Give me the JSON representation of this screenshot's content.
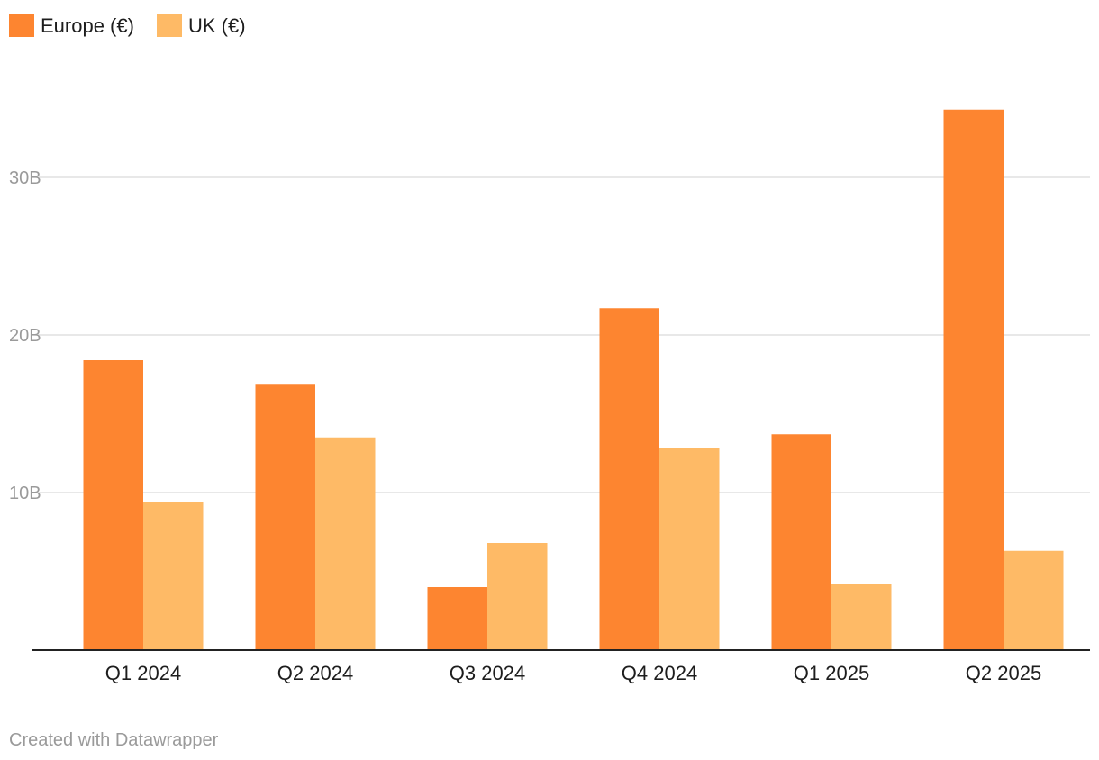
{
  "chart_data": {
    "type": "bar",
    "title": "",
    "xlabel": "",
    "ylabel": "",
    "categories": [
      "Q1 2024",
      "Q2 2024",
      "Q3 2024",
      "Q4 2024",
      "Q1 2025",
      "Q2 2025"
    ],
    "series": [
      {
        "name": "Europe (€)",
        "color": "#fd8530",
        "values": [
          18.4,
          16.9,
          4.0,
          21.7,
          13.7,
          34.3
        ]
      },
      {
        "name": "UK (€)",
        "color": "#feba66",
        "values": [
          9.4,
          13.5,
          6.8,
          12.8,
          4.2,
          6.3
        ]
      }
    ],
    "ylim": [
      0,
      37
    ],
    "yticks": [
      {
        "value": 10,
        "label": "10B"
      },
      {
        "value": 20,
        "label": "20B"
      },
      {
        "value": 30,
        "label": "30B"
      }
    ],
    "grid": true,
    "legend_position": "top-left"
  },
  "footer": {
    "credit": "Created with Datawrapper"
  }
}
